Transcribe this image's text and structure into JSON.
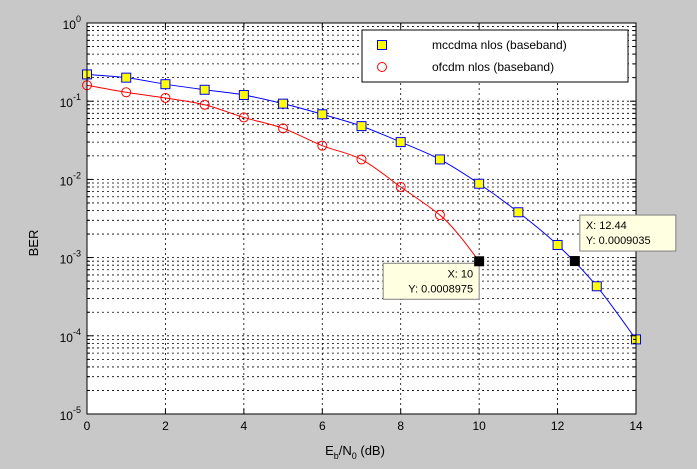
{
  "chart_data": {
    "type": "line",
    "xlabel_parts": {
      "main": "E",
      "sub1": "b",
      "mid": "/N",
      "sub2": "0",
      "tail": " (dB)"
    },
    "ylabel": "BER",
    "x_ticks": [
      0,
      2,
      4,
      6,
      8,
      10,
      12,
      14
    ],
    "y_ticks": [
      {
        "base": "10",
        "exp": "0",
        "value": 1
      },
      {
        "base": "10",
        "exp": "-1",
        "value": 0.1
      },
      {
        "base": "10",
        "exp": "-2",
        "value": 0.01
      },
      {
        "base": "10",
        "exp": "-3",
        "value": 0.001
      },
      {
        "base": "10",
        "exp": "-4",
        "value": 0.0001
      },
      {
        "base": "10",
        "exp": "-5",
        "value": 1e-05
      }
    ],
    "xlim": [
      0,
      14
    ],
    "ylim": [
      1e-05,
      1
    ],
    "yscale": "log",
    "grid": true,
    "legend_position": "top-right",
    "series": [
      {
        "name": "mccdma nlos (baseband)",
        "color": "#0000ff",
        "marker": "square",
        "marker_fill": "#ffff00",
        "x": [
          0,
          1,
          2,
          3,
          4,
          5,
          6,
          7,
          8,
          9,
          10,
          11,
          12,
          13,
          14
        ],
        "y": [
          0.22,
          0.2,
          0.165,
          0.14,
          0.12,
          0.093,
          0.068,
          0.048,
          0.03,
          0.018,
          0.0088,
          0.0038,
          0.00145,
          0.00043,
          9e-05
        ]
      },
      {
        "name": "ofcdm nlos (baseband)",
        "color": "#ff0000",
        "marker": "circle",
        "marker_fill": "none",
        "x": [
          0,
          1,
          2,
          3,
          4,
          5,
          6,
          7,
          8,
          9
        ],
        "y": [
          0.16,
          0.13,
          0.11,
          0.09,
          0.062,
          0.045,
          0.027,
          0.018,
          0.008,
          0.0035
        ],
        "tail": {
          "x": [
            9.5,
            10
          ],
          "y": [
            0.0019,
            0.0008975
          ]
        }
      }
    ],
    "datatips": [
      {
        "x": 10,
        "y": 0.0008975,
        "line1": "X: 10",
        "line2": "Y: 0.0008975",
        "box_side": "left"
      },
      {
        "x": 12.44,
        "y": 0.0009035,
        "line1": "X: 12.44",
        "line2": "Y: 0.0009035",
        "box_side": "right"
      }
    ]
  }
}
